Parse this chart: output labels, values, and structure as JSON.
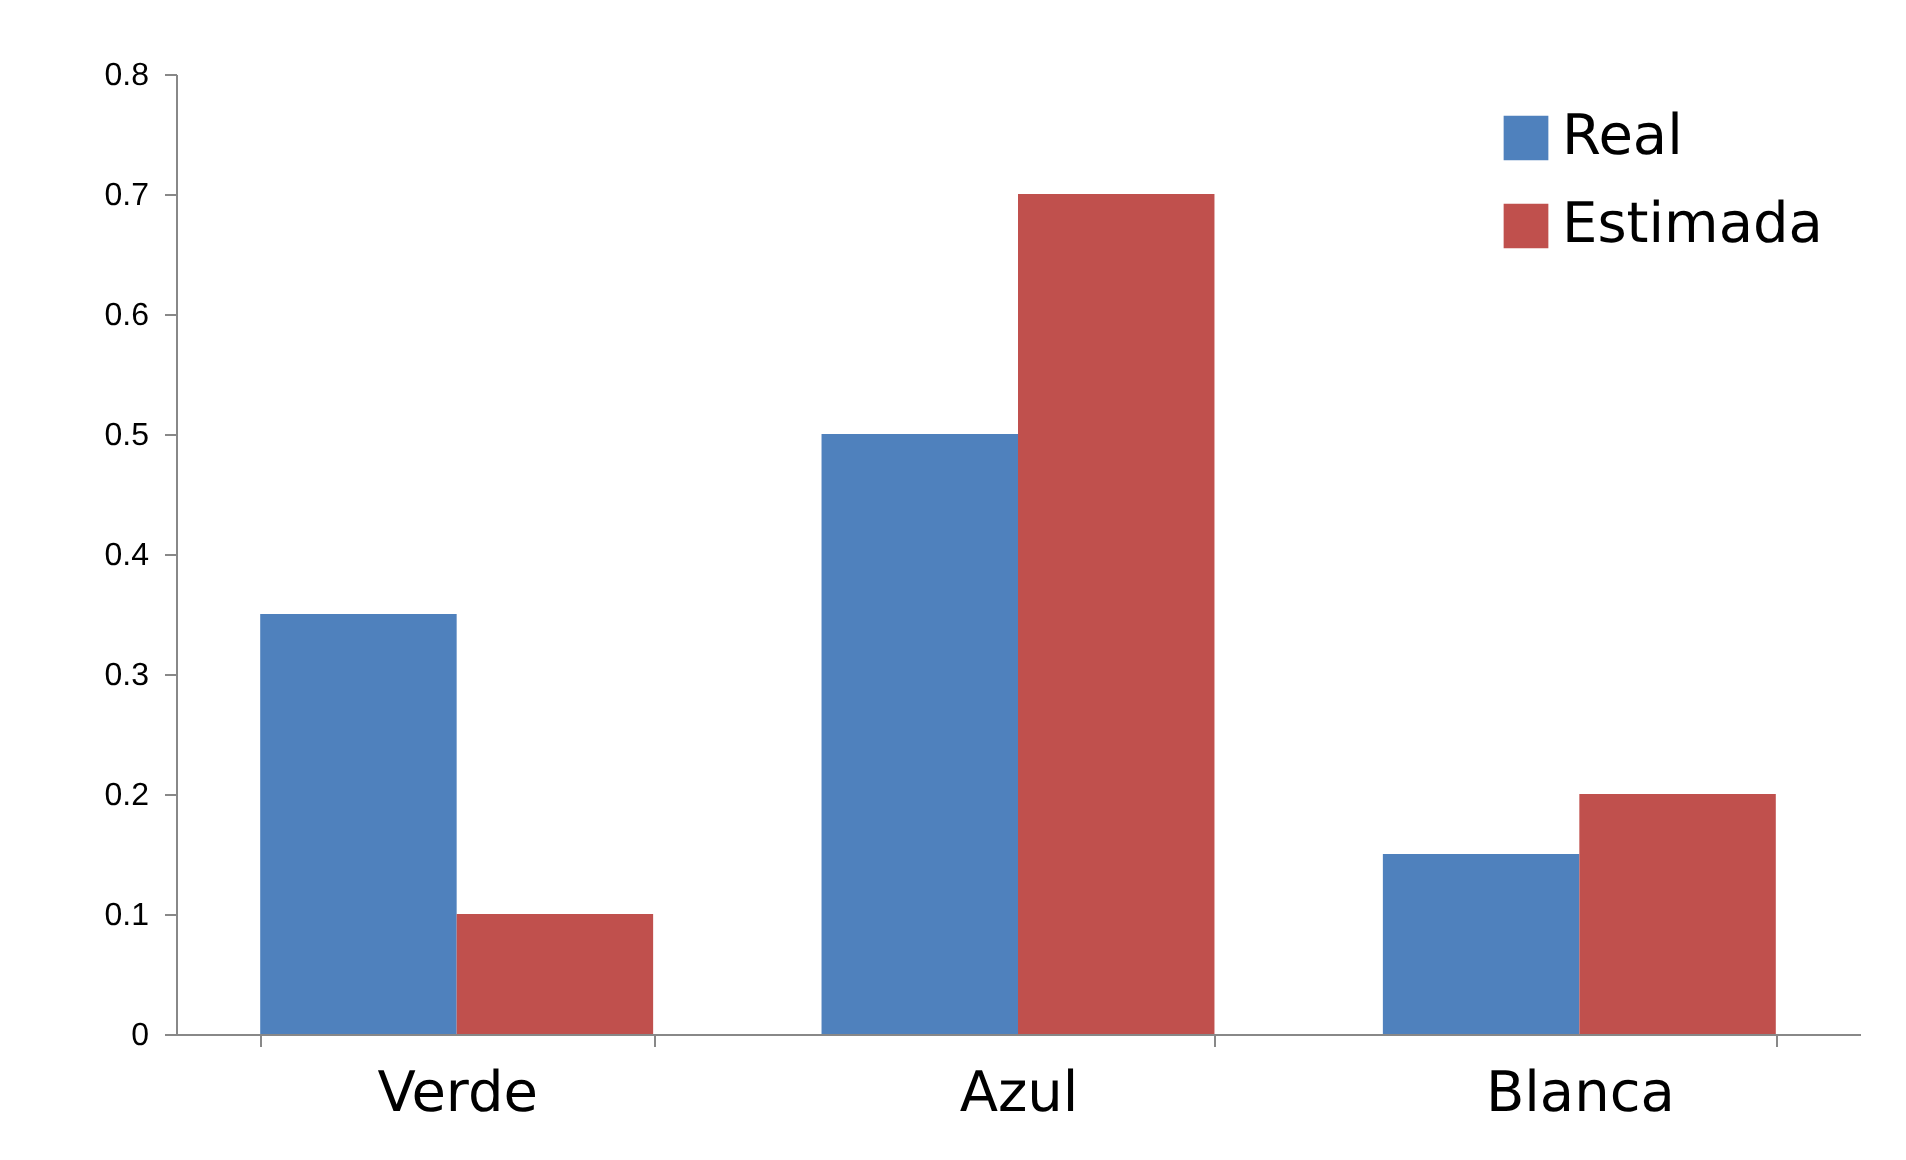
{
  "chart_data": {
    "type": "bar",
    "categories": [
      "Verde",
      "Azul",
      "Blanca"
    ],
    "series": [
      {
        "name": "Real",
        "color": "#4f81bd",
        "values": [
          0.35,
          0.5,
          0.15
        ]
      },
      {
        "name": "Estimada",
        "color": "#c0504d",
        "values": [
          0.1,
          0.7,
          0.2
        ]
      }
    ],
    "ylim": [
      0,
      0.8
    ],
    "yticks": [
      0,
      0.1,
      0.2,
      0.3,
      0.4,
      0.5,
      0.6,
      0.7,
      0.8
    ],
    "grid": false,
    "legend": "top right"
  }
}
